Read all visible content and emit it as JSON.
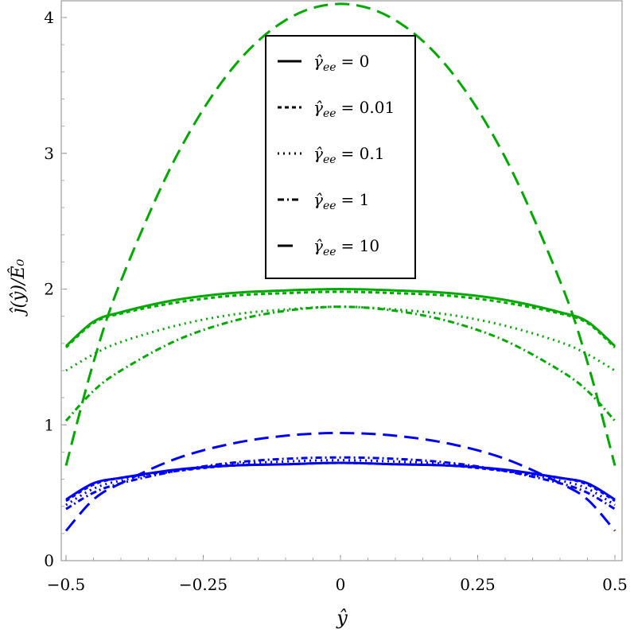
{
  "chart_data": {
    "type": "line",
    "xlabel": "ŷ",
    "ylabel": "ĵ(ŷ)/Ê₀",
    "xlim": [
      -0.5,
      0.5
    ],
    "ylim": [
      0,
      4.1
    ],
    "grid": false,
    "legend_position": "top-center",
    "x_ticks": [
      "−0.5",
      "−0.25",
      "0",
      "0.25",
      "0.5"
    ],
    "x_tick_values": [
      -0.5,
      -0.25,
      0,
      0.25,
      0.5
    ],
    "y_ticks": [
      "0",
      "1",
      "2",
      "3",
      "4"
    ],
    "y_tick_values": [
      0,
      1,
      2,
      3,
      4
    ],
    "colors": {
      "green": "#00aa00",
      "blue": "#0000ff"
    },
    "legend": [
      {
        "label": "γ̂",
        "sub": "ee",
        "value": "= 0",
        "style": "solid"
      },
      {
        "label": "γ̂",
        "sub": "ee",
        "value": "= 0.01",
        "style": "dashed"
      },
      {
        "label": "γ̂",
        "sub": "ee",
        "value": "= 0.1",
        "style": "dotted"
      },
      {
        "label": "γ̂",
        "sub": "ee",
        "value": "= 1",
        "style": "dashdot"
      },
      {
        "label": "γ̂",
        "sub": "ee",
        "value": "= 10",
        "style": "longdash"
      }
    ],
    "x": [
      -0.5,
      -0.45,
      -0.4,
      -0.3,
      -0.2,
      -0.1,
      0,
      0.1,
      0.2,
      0.3,
      0.4,
      0.45,
      0.5
    ],
    "series": [
      {
        "color": "green",
        "style": "solid",
        "values": [
          1.58,
          1.76,
          1.83,
          1.92,
          1.97,
          1.99,
          2.0,
          1.99,
          1.97,
          1.92,
          1.83,
          1.76,
          1.58
        ]
      },
      {
        "color": "green",
        "style": "dashed",
        "values": [
          1.57,
          1.75,
          1.82,
          1.9,
          1.95,
          1.97,
          1.98,
          1.97,
          1.95,
          1.9,
          1.82,
          1.75,
          1.57
        ]
      },
      {
        "color": "green",
        "style": "dotted",
        "values": [
          1.4,
          1.52,
          1.61,
          1.73,
          1.81,
          1.85,
          1.87,
          1.85,
          1.81,
          1.73,
          1.61,
          1.52,
          1.4
        ]
      },
      {
        "color": "green",
        "style": "dashdot",
        "values": [
          1.03,
          1.25,
          1.4,
          1.62,
          1.76,
          1.84,
          1.87,
          1.84,
          1.76,
          1.62,
          1.4,
          1.25,
          1.03
        ]
      },
      {
        "color": "green",
        "style": "longdash",
        "values": [
          0.7,
          1.46,
          2.06,
          2.97,
          3.61,
          3.98,
          4.1,
          3.98,
          3.61,
          2.97,
          2.06,
          1.46,
          0.7
        ]
      },
      {
        "color": "blue",
        "style": "solid",
        "values": [
          0.45,
          0.57,
          0.61,
          0.67,
          0.7,
          0.71,
          0.72,
          0.71,
          0.7,
          0.67,
          0.61,
          0.57,
          0.45
        ]
      },
      {
        "color": "blue",
        "style": "dashed",
        "values": [
          0.44,
          0.56,
          0.61,
          0.66,
          0.7,
          0.71,
          0.72,
          0.71,
          0.7,
          0.66,
          0.61,
          0.56,
          0.44
        ]
      },
      {
        "color": "blue",
        "style": "dotted",
        "values": [
          0.41,
          0.53,
          0.59,
          0.66,
          0.71,
          0.73,
          0.74,
          0.73,
          0.71,
          0.66,
          0.59,
          0.53,
          0.41
        ]
      },
      {
        "color": "blue",
        "style": "dashdot",
        "values": [
          0.38,
          0.5,
          0.57,
          0.66,
          0.72,
          0.75,
          0.76,
          0.75,
          0.72,
          0.66,
          0.57,
          0.5,
          0.38
        ]
      },
      {
        "color": "blue",
        "style": "longdash",
        "values": [
          0.22,
          0.45,
          0.57,
          0.75,
          0.86,
          0.92,
          0.94,
          0.92,
          0.86,
          0.75,
          0.57,
          0.45,
          0.22
        ]
      }
    ]
  }
}
